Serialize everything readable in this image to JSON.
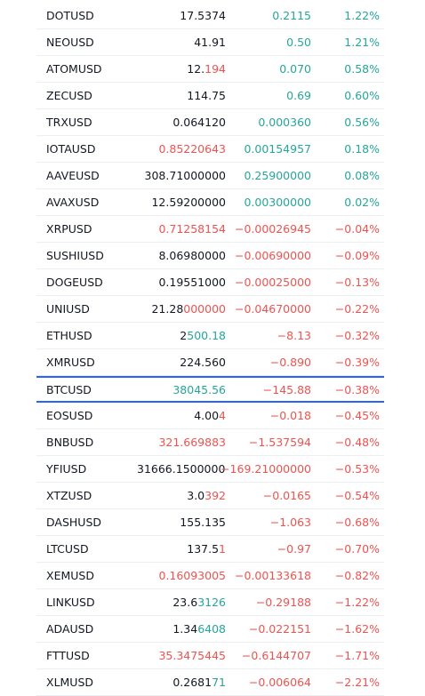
{
  "colors": {
    "up": "#26a69a",
    "down": "#ef5350",
    "text": "#131722",
    "selected_border": "#2962ff"
  },
  "watchlist": {
    "rows": [
      {
        "symbol": "DOTUSD",
        "last_plain": "17.5374",
        "last_hl": "",
        "last_hl_color": "",
        "change": "0.2115",
        "change_pct": "1.22%",
        "dir": "up"
      },
      {
        "symbol": "NEOUSD",
        "last_plain": "41.91",
        "last_hl": "",
        "last_hl_color": "",
        "change": "0.50",
        "change_pct": "1.21%",
        "dir": "up"
      },
      {
        "symbol": "ATOMUSD",
        "last_plain": "12.",
        "last_hl": "194",
        "last_hl_color": "down",
        "change": "0.070",
        "change_pct": "0.58%",
        "dir": "up"
      },
      {
        "symbol": "ZECUSD",
        "last_plain": "114.75",
        "last_hl": "",
        "last_hl_color": "",
        "change": "0.69",
        "change_pct": "0.60%",
        "dir": "up"
      },
      {
        "symbol": "TRXUSD",
        "last_plain": "0.064120",
        "last_hl": "",
        "last_hl_color": "",
        "change": "0.000360",
        "change_pct": "0.56%",
        "dir": "up"
      },
      {
        "symbol": "IOTAUSD",
        "last_plain": "",
        "last_hl": "0.85220643",
        "last_hl_color": "down",
        "change": "0.00154957",
        "change_pct": "0.18%",
        "dir": "up"
      },
      {
        "symbol": "AAVEUSD",
        "last_plain": "308.71000000",
        "last_hl": "",
        "last_hl_color": "",
        "change": "0.25900000",
        "change_pct": "0.08%",
        "dir": "up"
      },
      {
        "symbol": "AVAXUSD",
        "last_plain": "12.59200000",
        "last_hl": "",
        "last_hl_color": "",
        "change": "0.00300000",
        "change_pct": "0.02%",
        "dir": "up"
      },
      {
        "symbol": "XRPUSD",
        "last_plain": "",
        "last_hl": "0.71258154",
        "last_hl_color": "down",
        "change": "−0.00026945",
        "change_pct": "−0.04%",
        "dir": "down"
      },
      {
        "symbol": "SUSHIUSD",
        "last_plain": "8.06980000",
        "last_hl": "",
        "last_hl_color": "",
        "change": "−0.00690000",
        "change_pct": "−0.09%",
        "dir": "down"
      },
      {
        "symbol": "DOGEUSD",
        "last_plain": "0.19551000",
        "last_hl": "",
        "last_hl_color": "",
        "change": "−0.00025000",
        "change_pct": "−0.13%",
        "dir": "down"
      },
      {
        "symbol": "UNIUSD",
        "last_plain": "21.28",
        "last_hl": "000000",
        "last_hl_color": "down",
        "change": "−0.04670000",
        "change_pct": "−0.22%",
        "dir": "down"
      },
      {
        "symbol": "ETHUSD",
        "last_plain": "2",
        "last_hl": "500.18",
        "last_hl_color": "up",
        "change": "−8.13",
        "change_pct": "−0.32%",
        "dir": "down"
      },
      {
        "symbol": "XMRUSD",
        "last_plain": "224.560",
        "last_hl": "",
        "last_hl_color": "",
        "change": "−0.890",
        "change_pct": "−0.39%",
        "dir": "down"
      },
      {
        "symbol": "BTCUSD",
        "last_plain": "",
        "last_hl": "38045.56",
        "last_hl_color": "up",
        "change": "−145.88",
        "change_pct": "−0.38%",
        "dir": "down",
        "selected": true
      },
      {
        "symbol": "EOSUSD",
        "last_plain": "4.00",
        "last_hl": "4",
        "last_hl_color": "down",
        "change": "−0.018",
        "change_pct": "−0.45%",
        "dir": "down"
      },
      {
        "symbol": "BNBUSD",
        "last_plain": "",
        "last_hl": "321.669883",
        "last_hl_color": "down",
        "change": "−1.537594",
        "change_pct": "−0.48%",
        "dir": "down"
      },
      {
        "symbol": "YFIUSD",
        "last_plain": "31666.1500000(",
        "last_hl": "",
        "last_hl_color": "",
        "change": "−169.21000000",
        "change_pct": "−0.53%",
        "dir": "down"
      },
      {
        "symbol": "XTZUSD",
        "last_plain": "3.0",
        "last_hl": "392",
        "last_hl_color": "down",
        "change": "−0.0165",
        "change_pct": "−0.54%",
        "dir": "down"
      },
      {
        "symbol": "DASHUSD",
        "last_plain": "155.135",
        "last_hl": "",
        "last_hl_color": "",
        "change": "−1.063",
        "change_pct": "−0.68%",
        "dir": "down"
      },
      {
        "symbol": "LTCUSD",
        "last_plain": "137.5",
        "last_hl": "1",
        "last_hl_color": "down",
        "change": "−0.97",
        "change_pct": "−0.70%",
        "dir": "down"
      },
      {
        "symbol": "XEMUSD",
        "last_plain": "",
        "last_hl": "0.16093005",
        "last_hl_color": "down",
        "change": "−0.00133618",
        "change_pct": "−0.82%",
        "dir": "down"
      },
      {
        "symbol": "LINKUSD",
        "last_plain": "23.6",
        "last_hl": "3126",
        "last_hl_color": "up",
        "change": "−0.29188",
        "change_pct": "−1.22%",
        "dir": "down"
      },
      {
        "symbol": "ADAUSD",
        "last_plain": "1.34",
        "last_hl": "6408",
        "last_hl_color": "up",
        "change": "−0.022151",
        "change_pct": "−1.62%",
        "dir": "down"
      },
      {
        "symbol": "FTTUSD",
        "last_plain": "",
        "last_hl": "35.3475445",
        "last_hl_color": "down",
        "change": "−0.6144707",
        "change_pct": "−1.71%",
        "dir": "down"
      },
      {
        "symbol": "XLMUSD",
        "last_plain": "0.2681",
        "last_hl": "71",
        "last_hl_color": "up",
        "change": "−0.006064",
        "change_pct": "−2.21%",
        "dir": "down"
      }
    ]
  }
}
